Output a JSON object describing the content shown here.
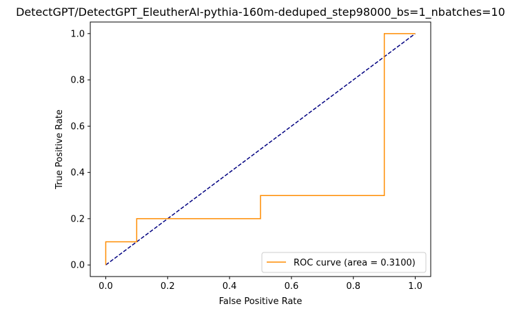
{
  "chart_data": {
    "type": "line",
    "title": "DetectGPT/DetectGPT_EleutherAI-pythia-160m-deduped_step98000_bs=1_nbatches=10",
    "xlabel": "False Positive Rate",
    "ylabel": "True Positive Rate",
    "xlim": [
      -0.05,
      1.05
    ],
    "ylim": [
      -0.05,
      1.05
    ],
    "x_ticks": [
      "0.0",
      "0.2",
      "0.4",
      "0.6",
      "0.8",
      "1.0"
    ],
    "y_ticks": [
      "0.0",
      "0.2",
      "0.4",
      "0.6",
      "0.8",
      "1.0"
    ],
    "grid": false,
    "legend_position": "lower right",
    "series": [
      {
        "name": "ROC curve (area = 0.3100)",
        "color": "#ff8c00",
        "style": "solid",
        "x": [
          0.0,
          0.0,
          0.1,
          0.1,
          0.5,
          0.5,
          0.9,
          0.9,
          1.0
        ],
        "y": [
          0.0,
          0.1,
          0.1,
          0.2,
          0.2,
          0.3,
          0.3,
          1.0,
          1.0
        ]
      },
      {
        "color": "#000080",
        "style": "dashed",
        "x": [
          0.0,
          1.0
        ],
        "y": [
          0.0,
          1.0
        ]
      }
    ]
  }
}
